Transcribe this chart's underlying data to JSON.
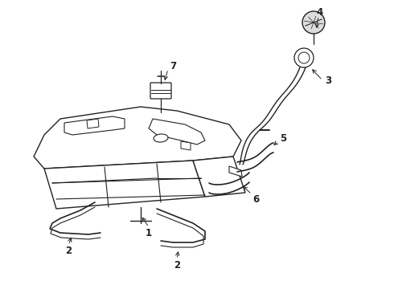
{
  "bg_color": "#ffffff",
  "line_color": "#222222",
  "lw": 1.0,
  "fig_width": 4.9,
  "fig_height": 3.6,
  "dpi": 100,
  "font_size": 8.5
}
